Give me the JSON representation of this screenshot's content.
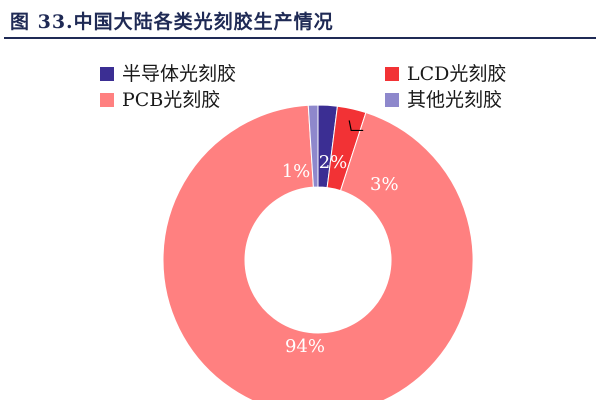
{
  "figure": {
    "title": "图 33.中国大陆各类光刻胶生产情况"
  },
  "colors": {
    "title": "#1f2a55",
    "background": "#ffffff"
  },
  "chart_data": {
    "type": "pie",
    "variant": "donut",
    "title": "图 33.中国大陆各类光刻胶生产情况",
    "legend_position": "top",
    "series": [
      {
        "name": "半导体光刻胶",
        "value": 2,
        "label": "2%",
        "color": "#3b2e93"
      },
      {
        "name": "LCD光刻胶",
        "value": 3,
        "label": "3%",
        "color": "#f23235"
      },
      {
        "name": "PCB光刻胶",
        "value": 94,
        "label": "94%",
        "color": "#ff8080"
      },
      {
        "name": "其他光刻胶",
        "value": 1,
        "label": "1%",
        "color": "#8e88cc"
      }
    ]
  }
}
